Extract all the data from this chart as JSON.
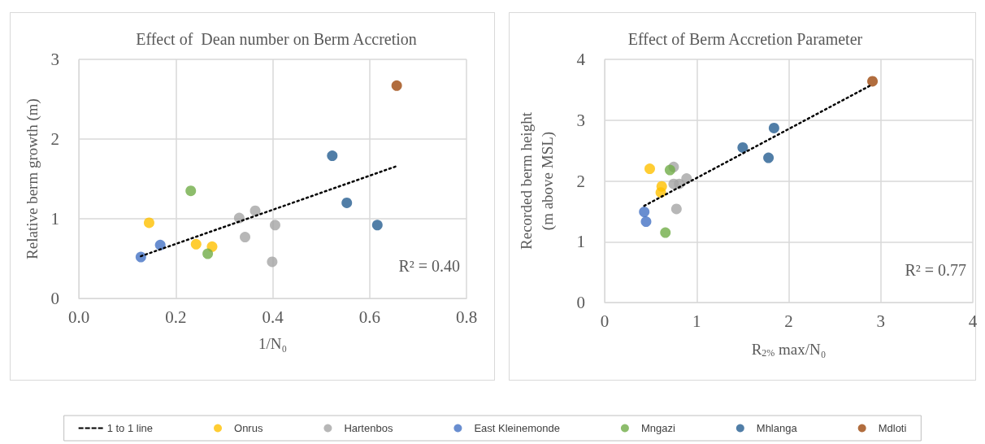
{
  "chart_data": [
    {
      "type": "scatter",
      "title": "Effect of  Dean number on Berm Accretion",
      "xlabel": "1/N₀",
      "ylabel": "Relative berm growth (m)",
      "annotations": [
        "R² = 0.40"
      ],
      "xlim": [
        0,
        0.8
      ],
      "xticks": [
        {
          "value": 0,
          "label": "0.0"
        },
        0.2,
        0.4,
        0.6,
        0.8
      ],
      "ylim": [
        0,
        3
      ],
      "yticks": [
        0,
        1,
        2,
        3
      ],
      "grid": true,
      "legend": "bottom",
      "marker": "circle",
      "series": [
        {
          "name": "1 to 1 line",
          "type": "line",
          "color": "#000000",
          "line_style": "dotted",
          "marker": "none",
          "x": [
            0.128,
            0.656
          ],
          "values": [
            0.53,
            1.66
          ]
        },
        {
          "name": "Onrus",
          "color": "#ffc000",
          "x": [
            0.145,
            0.242,
            0.275
          ],
          "values": [
            0.95,
            0.68,
            0.65
          ]
        },
        {
          "name": "Hartenbos",
          "color": "#a5a5a5",
          "x": [
            0.331,
            0.364,
            0.343,
            0.405,
            0.399
          ],
          "values": [
            1.01,
            1.1,
            0.77,
            0.92,
            0.46
          ]
        },
        {
          "name": "East Kleinemonde",
          "color": "#4472c4",
          "x": [
            0.128,
            0.168
          ],
          "values": [
            0.52,
            0.67
          ]
        },
        {
          "name": "Mngazi",
          "color": "#70ad47",
          "x": [
            0.231,
            0.266
          ],
          "values": [
            1.35,
            0.56
          ]
        },
        {
          "name": "Mhlanga",
          "color": "#255e91",
          "x": [
            0.523,
            0.553,
            0.616
          ],
          "values": [
            1.79,
            1.2,
            0.92
          ]
        },
        {
          "name": "Mdloti",
          "color": "#9e480e",
          "x": [
            0.656
          ],
          "values": [
            2.67
          ]
        }
      ]
    },
    {
      "type": "scatter",
      "title": "Effect of Berm Accretion Parameter",
      "xlabel": "R$_{2%}$ max/N₀",
      "ylabel": "Recorded berm height\n(m above MSL)",
      "annotations": [
        "R² = 0.77"
      ],
      "xlim": [
        0,
        4
      ],
      "xticks": [
        0,
        1,
        2,
        3,
        4
      ],
      "ylim": [
        0,
        4
      ],
      "yticks": [
        0,
        1,
        2,
        3,
        4
      ],
      "grid": true,
      "legend": false,
      "marker": "circle",
      "series": [
        {
          "type": "line",
          "color": "#000000",
          "line_style": "dotted",
          "marker": "none",
          "x": [
            0.43,
            2.9
          ],
          "values": [
            1.59,
            3.58
          ]
        },
        {
          "color": "#ffc000",
          "x": [
            0.49,
            0.62,
            0.61
          ],
          "values": [
            2.2,
            1.91,
            1.81
          ]
        },
        {
          "color": "#a5a5a5",
          "x": [
            0.75,
            0.75,
            0.81,
            0.89,
            0.78
          ],
          "values": [
            2.23,
            1.95,
            1.95,
            2.04,
            1.54
          ]
        },
        {
          "color": "#4472c4",
          "x": [
            0.43,
            0.45
          ],
          "values": [
            1.49,
            1.33
          ]
        },
        {
          "color": "#70ad47",
          "x": [
            0.71,
            0.66
          ],
          "values": [
            2.18,
            1.15
          ]
        },
        {
          "color": "#255e91",
          "x": [
            1.5,
            1.84,
            1.78
          ],
          "values": [
            2.55,
            2.87,
            2.38
          ]
        },
        {
          "color": "#9e480e",
          "x": [
            2.91
          ],
          "values": [
            3.64
          ]
        }
      ]
    }
  ]
}
